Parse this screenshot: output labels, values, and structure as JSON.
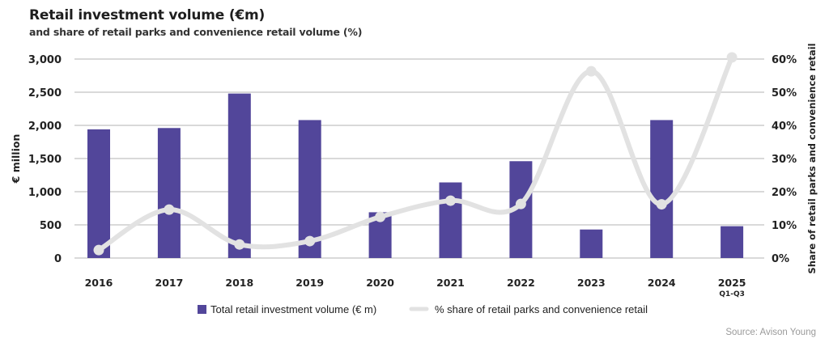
{
  "chart_data": {
    "type": "bar",
    "title": "Retail investment volume (€m)",
    "subtitle": "and share of retail parks and convenience retail volume (%)",
    "categories": [
      "2016",
      "2017",
      "2018",
      "2019",
      "2020",
      "2021",
      "2022",
      "2023",
      "2024",
      "2025"
    ],
    "category_sublabels": [
      "",
      "",
      "",
      "",
      "",
      "",
      "",
      "",
      "",
      "Q1-Q3"
    ],
    "series": [
      {
        "name": "Total retail investment volume (€ m)",
        "type": "bar",
        "axis": "left",
        "color": "#52469a",
        "values": [
          1940,
          1960,
          2480,
          2080,
          690,
          1140,
          1460,
          430,
          2080,
          480
        ]
      },
      {
        "name": "% share of retail parks and convenience retail",
        "type": "line",
        "axis": "right",
        "smooth": true,
        "color": "#e2e2e2",
        "values": [
          2.4,
          14.6,
          4.1,
          5.1,
          12.4,
          17.3,
          16.3,
          56.3,
          16.2,
          60.5
        ]
      }
    ],
    "ylabel": "€ million",
    "ylim": [
      0,
      3000
    ],
    "yticks": [
      0,
      500,
      1000,
      1500,
      2000,
      2500,
      3000
    ],
    "ytick_labels": [
      "0",
      "500",
      "1,000",
      "1,500",
      "2,000",
      "2,500",
      "3,000"
    ],
    "y2label": "Share of retail parks and convenience retail",
    "y2lim": [
      0,
      60
    ],
    "y2ticks": [
      0,
      10,
      20,
      30,
      40,
      50,
      60
    ],
    "y2tick_labels": [
      "0%",
      "10%",
      "20%",
      "30%",
      "40%",
      "50%",
      "60%"
    ],
    "grid": true,
    "legend_position": "bottom-center",
    "source": "Source: Avison Young"
  },
  "colors": {
    "bar": "#52469a",
    "line": "#e2e2e2",
    "grid": "#d9d9d9"
  }
}
